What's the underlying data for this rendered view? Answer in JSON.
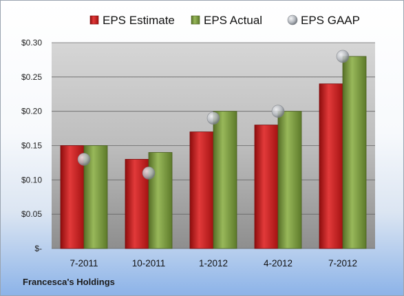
{
  "company_name": "Francesca's Holdings",
  "chart_data": {
    "type": "bar",
    "title": "",
    "xlabel": "",
    "ylabel": "",
    "categories": [
      "7-2011",
      "10-2011",
      "1-2012",
      "4-2012",
      "7-2012"
    ],
    "series": [
      {
        "name": "EPS Estimate",
        "kind": "bar",
        "color": "#cc1f1f",
        "values": [
          0.15,
          0.13,
          0.17,
          0.18,
          0.24
        ]
      },
      {
        "name": "EPS Actual",
        "kind": "bar",
        "color": "#7a9e3a",
        "values": [
          0.15,
          0.14,
          0.2,
          0.2,
          0.28
        ]
      },
      {
        "name": "EPS GAAP",
        "kind": "marker",
        "color": "#b8bcc2",
        "values": [
          0.13,
          0.11,
          0.19,
          0.2,
          0.28
        ]
      }
    ],
    "ylim": [
      0,
      0.3
    ],
    "yticks": [
      0,
      0.05,
      0.1,
      0.15,
      0.2,
      0.25,
      0.3
    ],
    "ytick_labels": [
      "$-",
      "$0.05",
      "$0.10",
      "$0.15",
      "$0.20",
      "$0.25",
      "$0.30"
    ],
    "grid": true,
    "legend_position": "top"
  }
}
